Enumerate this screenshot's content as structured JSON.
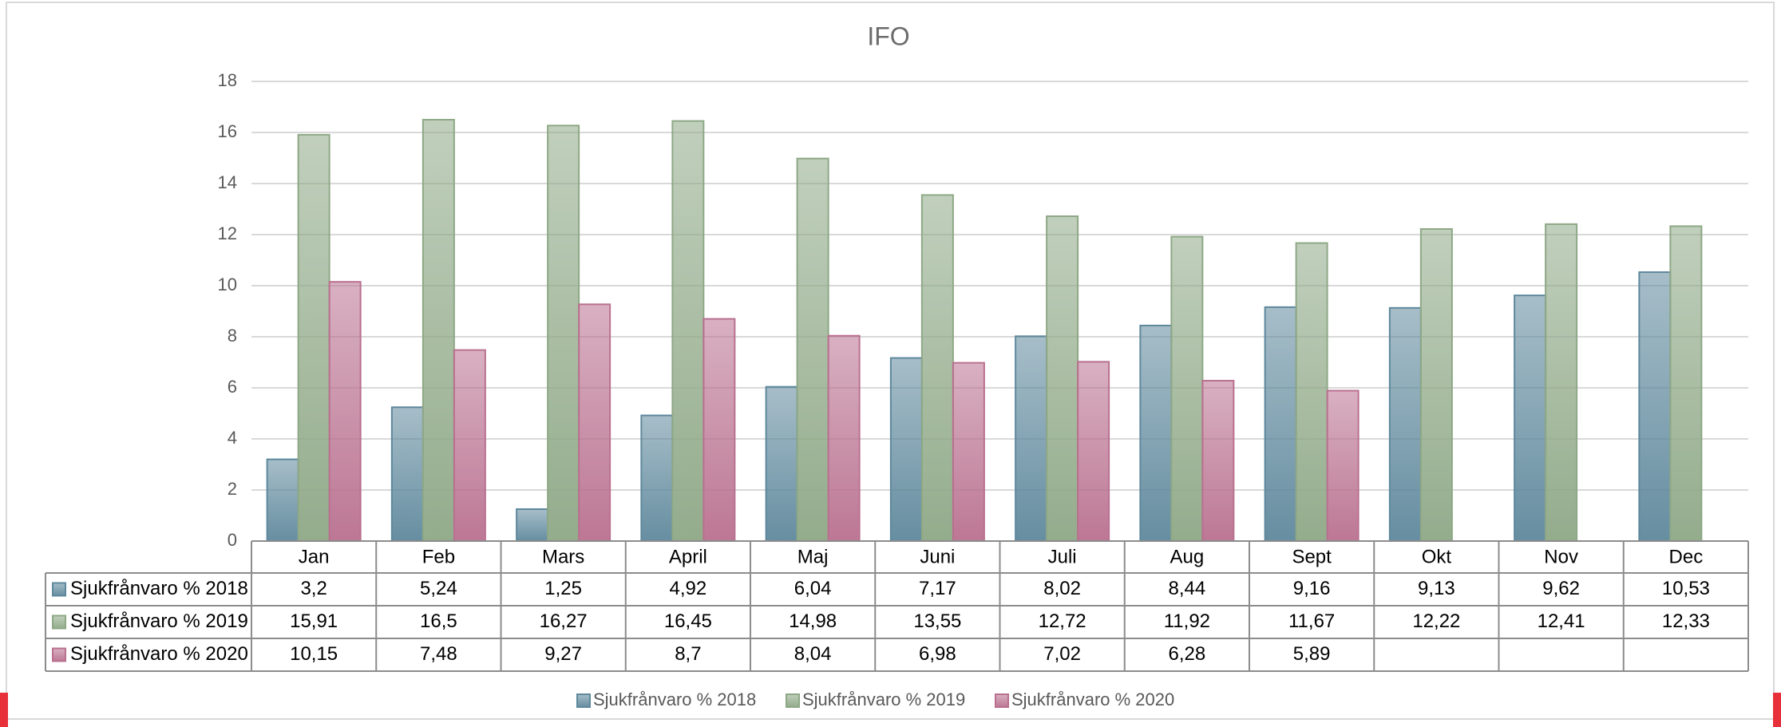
{
  "chart_data": {
    "type": "bar",
    "title": "IFO",
    "categories": [
      "Jan",
      "Feb",
      "Mars",
      "April",
      "Maj",
      "Juni",
      "Juli",
      "Aug",
      "Sept",
      "Okt",
      "Nov",
      "Dec"
    ],
    "series": [
      {
        "name": "Sjukfrånvaro % 2018",
        "color": "#5e889c",
        "values": [
          3.2,
          5.24,
          1.25,
          4.92,
          6.04,
          7.17,
          8.02,
          8.44,
          9.16,
          9.13,
          9.62,
          10.53
        ],
        "value_labels": [
          "3,2",
          "5,24",
          "1,25",
          "4,92",
          "6,04",
          "7,17",
          "8,02",
          "8,44",
          "9,16",
          "9,13",
          "9,62",
          "10,53"
        ]
      },
      {
        "name": "Sjukfrånvaro % 2019",
        "color": "#8ea886",
        "values": [
          15.91,
          16.5,
          16.27,
          16.45,
          14.98,
          13.55,
          12.72,
          11.92,
          11.67,
          12.22,
          12.41,
          12.33
        ],
        "value_labels": [
          "15,91",
          "16,5",
          "16,27",
          "16,45",
          "14,98",
          "13,55",
          "12,72",
          "11,92",
          "11,67",
          "12,22",
          "12,41",
          "12,33"
        ]
      },
      {
        "name": "Sjukfrånvaro % 2020",
        "color": "#b9708f",
        "values": [
          10.15,
          7.48,
          9.27,
          8.7,
          8.04,
          6.98,
          7.02,
          6.28,
          5.89,
          null,
          null,
          null
        ],
        "value_labels": [
          "10,15",
          "7,48",
          "9,27",
          "8,7",
          "8,04",
          "6,98",
          "7,02",
          "6,28",
          "5,89",
          null,
          null,
          null
        ]
      }
    ],
    "ylim": [
      0,
      18
    ],
    "yticks": [
      0,
      2,
      4,
      6,
      8,
      10,
      12,
      14,
      16,
      18
    ],
    "grid": true,
    "legend": "bottom",
    "data_table": true
  }
}
